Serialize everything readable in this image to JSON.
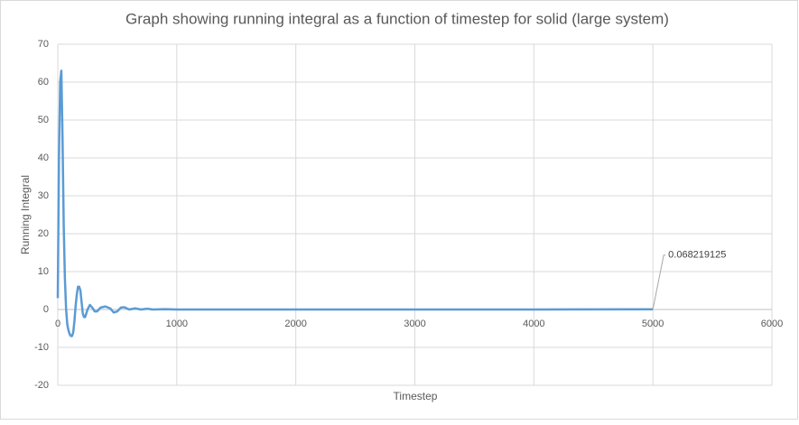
{
  "chart_data": {
    "type": "line",
    "title": "Graph showing running integral as a function of timestep for solid (large system)",
    "x_label": "Timestep",
    "y_label": "Running Integral",
    "x": [
      0,
      10,
      20,
      30,
      40,
      50,
      60,
      70,
      80,
      90,
      100,
      110,
      120,
      130,
      140,
      150,
      160,
      170,
      180,
      190,
      200,
      210,
      220,
      230,
      250,
      270,
      290,
      310,
      330,
      360,
      400,
      440,
      470,
      500,
      530,
      560,
      600,
      650,
      700,
      750,
      800,
      900,
      1000,
      2000,
      3000,
      4000,
      5000
    ],
    "values": [
      3,
      40,
      60,
      63,
      45,
      22,
      8,
      0,
      -4,
      -5.5,
      -6.5,
      -7,
      -7,
      -6,
      -3,
      1,
      4,
      6,
      6,
      5,
      2,
      -1,
      -2,
      -2,
      0,
      1.2,
      0.5,
      -0.5,
      -0.5,
      0.5,
      0.8,
      0.3,
      -0.8,
      -0.5,
      0.5,
      0.6,
      0,
      0.3,
      0,
      0.2,
      0,
      0.1,
      0,
      0,
      0,
      0,
      0.068219125
    ],
    "color": "#5b9bd5",
    "data_label_index": 46,
    "xlim": [
      0,
      6000
    ],
    "xticks": [
      0,
      1000,
      2000,
      3000,
      4000,
      5000,
      6000
    ],
    "ylim": [
      -20,
      70
    ],
    "yticks": [
      -20,
      -10,
      0,
      10,
      20,
      30,
      40,
      50,
      60,
      70
    ],
    "grid": true
  }
}
